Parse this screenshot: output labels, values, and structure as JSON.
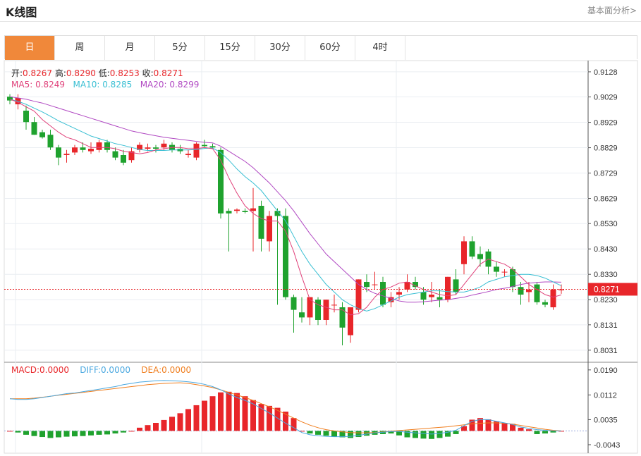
{
  "header": {
    "title": "K线图",
    "analysis_link": "基本面分析>"
  },
  "tabs": [
    {
      "label": "日",
      "active": true
    },
    {
      "label": "周",
      "active": false
    },
    {
      "label": "月",
      "active": false
    },
    {
      "label": "5分",
      "active": false
    },
    {
      "label": "15分",
      "active": false
    },
    {
      "label": "30分",
      "active": false
    },
    {
      "label": "60分",
      "active": false
    },
    {
      "label": "4时",
      "active": false
    }
  ],
  "ohlc_legend": {
    "open_label": "开:",
    "open": "0.8267",
    "high_label": "高:",
    "high": "0.8290",
    "low_label": "低:",
    "low": "0.8253",
    "close_label": "收:",
    "close": "0.8271"
  },
  "ma_legend": {
    "ma5_label": "MA5:",
    "ma5": "0.8249",
    "ma10_label": "MA10:",
    "ma10": "0.8285",
    "ma20_label": "MA20:",
    "ma20": "0.8299"
  },
  "macd_legend": {
    "macd_label": "MACD:",
    "macd": "0.0000",
    "diff_label": "DIFF:",
    "diff": "0.0000",
    "dea_label": "DEA:",
    "dea": "0.0000"
  },
  "colors": {
    "up": "#e8262a",
    "down": "#1fa22e",
    "ma5": "#e0417a",
    "ma10": "#39bfd3",
    "ma20": "#b048c2",
    "diff": "#4aa8e0",
    "dea": "#f07e1e",
    "accent": "#f0883a",
    "grid": "#eaeef2"
  },
  "chart_data": [
    {
      "type": "candlestick",
      "name": "price",
      "y_ticks": [
        "0.9128",
        "0.9029",
        "0.8929",
        "0.8829",
        "0.8729",
        "0.8629",
        "0.8530",
        "0.8430",
        "0.8330",
        "0.8230",
        "0.8131",
        "0.8031"
      ],
      "ylim": [
        0.8,
        0.915
      ],
      "current_price_label": "0.8271",
      "current_price": 0.8271,
      "candles": [
        [
          0.903,
          0.904,
          0.9,
          0.9015
        ],
        [
          0.9,
          0.904,
          0.898,
          0.9025
        ],
        [
          0.8975,
          0.8995,
          0.89,
          0.893
        ],
        [
          0.893,
          0.895,
          0.888,
          0.888
        ],
        [
          0.889,
          0.89,
          0.8865,
          0.887
        ],
        [
          0.888,
          0.89,
          0.882,
          0.883
        ],
        [
          0.883,
          0.884,
          0.876,
          0.879
        ],
        [
          0.88,
          0.882,
          0.877,
          0.8805
        ],
        [
          0.881,
          0.884,
          0.88,
          0.883
        ],
        [
          0.883,
          0.885,
          0.881,
          0.882
        ],
        [
          0.8815,
          0.885,
          0.8805,
          0.8825
        ],
        [
          0.882,
          0.886,
          0.881,
          0.885
        ],
        [
          0.885,
          0.886,
          0.881,
          0.882
        ],
        [
          0.8815,
          0.883,
          0.878,
          0.879
        ],
        [
          0.88,
          0.882,
          0.876,
          0.877
        ],
        [
          0.878,
          0.883,
          0.877,
          0.8815
        ],
        [
          0.882,
          0.885,
          0.881,
          0.884
        ],
        [
          0.8825,
          0.8845,
          0.8815,
          0.883
        ],
        [
          0.883,
          0.884,
          0.881,
          0.8825
        ],
        [
          0.883,
          0.886,
          0.882,
          0.8845
        ],
        [
          0.884,
          0.885,
          0.881,
          0.882
        ],
        [
          0.8825,
          0.884,
          0.8805,
          0.8815
        ],
        [
          0.88,
          0.882,
          0.879,
          0.8805
        ],
        [
          0.879,
          0.885,
          0.878,
          0.8845
        ],
        [
          0.884,
          0.886,
          0.883,
          0.8835
        ],
        [
          0.8835,
          0.8845,
          0.8825,
          0.883
        ],
        [
          0.882,
          0.883,
          0.855,
          0.857
        ],
        [
          0.858,
          0.859,
          0.842,
          0.857
        ],
        [
          0.858,
          0.859,
          0.857,
          0.8585
        ],
        [
          0.858,
          0.859,
          0.857,
          0.8575
        ],
        [
          0.858,
          0.867,
          0.842,
          0.859
        ],
        [
          0.86,
          0.862,
          0.842,
          0.847
        ],
        [
          0.846,
          0.858,
          0.842,
          0.856
        ],
        [
          0.858,
          0.859,
          0.821,
          0.856
        ],
        [
          0.856,
          0.859,
          0.823,
          0.824
        ],
        [
          0.824,
          0.825,
          0.81,
          0.819
        ],
        [
          0.818,
          0.824,
          0.814,
          0.816
        ],
        [
          0.816,
          0.824,
          0.813,
          0.824
        ],
        [
          0.823,
          0.824,
          0.813,
          0.815
        ],
        [
          0.815,
          0.823,
          0.813,
          0.823
        ],
        [
          0.821,
          0.825,
          0.818,
          0.821
        ],
        [
          0.82,
          0.822,
          0.805,
          0.812
        ],
        [
          0.809,
          0.82,
          0.806,
          0.82
        ],
        [
          0.819,
          0.831,
          0.818,
          0.831
        ],
        [
          0.83,
          0.833,
          0.826,
          0.828
        ],
        [
          0.829,
          0.834,
          0.827,
          0.829
        ],
        [
          0.83,
          0.832,
          0.82,
          0.821
        ],
        [
          0.822,
          0.826,
          0.82,
          0.824
        ],
        [
          0.825,
          0.828,
          0.823,
          0.826
        ],
        [
          0.827,
          0.833,
          0.826,
          0.83
        ],
        [
          0.83,
          0.832,
          0.827,
          0.828
        ],
        [
          0.826,
          0.828,
          0.821,
          0.823
        ],
        [
          0.824,
          0.83,
          0.822,
          0.825
        ],
        [
          0.824,
          0.827,
          0.82,
          0.823
        ],
        [
          0.823,
          0.832,
          0.822,
          0.832
        ],
        [
          0.831,
          0.835,
          0.825,
          0.826
        ],
        [
          0.837,
          0.848,
          0.833,
          0.846
        ],
        [
          0.846,
          0.848,
          0.839,
          0.84
        ],
        [
          0.841,
          0.844,
          0.836,
          0.839
        ],
        [
          0.842,
          0.843,
          0.833,
          0.836
        ],
        [
          0.836,
          0.838,
          0.832,
          0.834
        ],
        [
          0.834,
          0.835,
          0.832,
          0.834
        ],
        [
          0.835,
          0.836,
          0.826,
          0.828
        ],
        [
          0.828,
          0.83,
          0.821,
          0.825
        ],
        [
          0.826,
          0.83,
          0.822,
          0.827
        ],
        [
          0.829,
          0.83,
          0.821,
          0.822
        ],
        [
          0.822,
          0.823,
          0.82,
          0.821
        ],
        [
          0.82,
          0.829,
          0.819,
          0.827
        ],
        [
          0.8267,
          0.829,
          0.8253,
          0.8271
        ]
      ],
      "ma5": [
        0.902,
        0.9008,
        0.899,
        0.8973,
        0.894,
        0.8915,
        0.889,
        0.887,
        0.886,
        0.8845,
        0.883,
        0.883,
        0.883,
        0.8825,
        0.8815,
        0.881,
        0.8805,
        0.881,
        0.882,
        0.8825,
        0.883,
        0.883,
        0.8825,
        0.8825,
        0.883,
        0.8825,
        0.878,
        0.871,
        0.865,
        0.86,
        0.857,
        0.855,
        0.854,
        0.854,
        0.85,
        0.842,
        0.832,
        0.823,
        0.821,
        0.82,
        0.819,
        0.819,
        0.817,
        0.8175,
        0.82,
        0.824,
        0.827,
        0.828,
        0.8295,
        0.83,
        0.8285,
        0.827,
        0.826,
        0.825,
        0.8245,
        0.825,
        0.829,
        0.833,
        0.837,
        0.839,
        0.838,
        0.837,
        0.835,
        0.832,
        0.829,
        0.827,
        0.825,
        0.824,
        0.8249
      ],
      "ma10": [
        0.902,
        0.9012,
        0.9,
        0.8985,
        0.897,
        0.8953,
        0.8935,
        0.892,
        0.8905,
        0.889,
        0.8875,
        0.8865,
        0.8855,
        0.8845,
        0.8838,
        0.883,
        0.8822,
        0.8818,
        0.8818,
        0.8818,
        0.882,
        0.882,
        0.882,
        0.8822,
        0.8826,
        0.8828,
        0.881,
        0.878,
        0.8745,
        0.8715,
        0.869,
        0.866,
        0.862,
        0.858,
        0.854,
        0.848,
        0.842,
        0.837,
        0.833,
        0.829,
        0.826,
        0.823,
        0.821,
        0.8195,
        0.8185,
        0.8195,
        0.821,
        0.8225,
        0.824,
        0.825,
        0.8255,
        0.826,
        0.8265,
        0.8265,
        0.8262,
        0.826,
        0.826,
        0.8268,
        0.828,
        0.83,
        0.831,
        0.832,
        0.8325,
        0.833,
        0.833,
        0.8325,
        0.8315,
        0.83,
        0.8285
      ],
      "ma20": [
        0.903,
        0.9025,
        0.902,
        0.9012,
        0.9005,
        0.8995,
        0.8985,
        0.8975,
        0.8965,
        0.8955,
        0.8945,
        0.8935,
        0.8925,
        0.8915,
        0.8905,
        0.8895,
        0.8888,
        0.8882,
        0.8876,
        0.887,
        0.8866,
        0.8862,
        0.8858,
        0.8854,
        0.885,
        0.8848,
        0.8835,
        0.8815,
        0.8795,
        0.8775,
        0.875,
        0.872,
        0.869,
        0.8655,
        0.862,
        0.858,
        0.8535,
        0.849,
        0.845,
        0.841,
        0.838,
        0.835,
        0.832,
        0.829,
        0.827,
        0.8255,
        0.8245,
        0.8235,
        0.8225,
        0.822,
        0.822,
        0.8222,
        0.8225,
        0.8228,
        0.823,
        0.8235,
        0.824,
        0.8248,
        0.8255,
        0.8262,
        0.827,
        0.8275,
        0.8282,
        0.829,
        0.8295,
        0.8298,
        0.83,
        0.83,
        0.8299
      ]
    },
    {
      "type": "bar",
      "name": "macd",
      "y_ticks": [
        "0.0190",
        "0.0112",
        "0.0035",
        "-0.0043"
      ],
      "ylim": [
        -0.0065,
        0.0205
      ],
      "histogram": [
        0.0,
        -0.0005,
        -0.0012,
        -0.0016,
        -0.0019,
        -0.0022,
        -0.002,
        -0.0018,
        -0.0017,
        -0.0016,
        -0.0014,
        -0.0012,
        -0.0011,
        -0.0008,
        -0.0005,
        0.0,
        0.001,
        0.0018,
        0.0025,
        0.0034,
        0.0044,
        0.0055,
        0.0068,
        0.008,
        0.0094,
        0.0108,
        0.012,
        0.0122,
        0.0118,
        0.0108,
        0.0096,
        0.0084,
        0.0078,
        0.0072,
        0.006,
        0.004,
        0.0,
        -0.0008,
        -0.0012,
        -0.0015,
        -0.0018,
        -0.002,
        -0.0022,
        -0.0019,
        -0.0015,
        -0.0012,
        -0.001,
        -0.0008,
        -0.0014,
        -0.002,
        -0.0022,
        -0.0024,
        -0.0025,
        -0.0022,
        -0.0018,
        -0.001,
        0.0015,
        0.0035,
        0.004,
        0.0036,
        0.003,
        0.0025,
        0.0022,
        0.001,
        0.0005,
        -0.001,
        -0.0008,
        -0.0005,
        0.0
      ],
      "diff": [
        0.01,
        0.0098,
        0.0098,
        0.01,
        0.0104,
        0.0108,
        0.0112,
        0.0116,
        0.0118,
        0.0122,
        0.0126,
        0.013,
        0.0134,
        0.0138,
        0.0144,
        0.0148,
        0.0152,
        0.0154,
        0.0156,
        0.0157,
        0.0156,
        0.0155,
        0.0153,
        0.015,
        0.0145,
        0.0138,
        0.0128,
        0.0115,
        0.0104,
        0.0095,
        0.0084,
        0.007,
        0.0056,
        0.004,
        0.0024,
        0.001,
        -0.0005,
        -0.0012,
        -0.0015,
        -0.0017,
        -0.0018,
        -0.0018,
        -0.0017,
        -0.0014,
        -0.001,
        -0.0006,
        -0.0004,
        -0.0002,
        -0.0002,
        -0.0004,
        -0.0006,
        -0.0008,
        -0.001,
        -0.0008,
        -0.0004,
        0.0002,
        0.0016,
        0.003,
        0.0035,
        0.0035,
        0.003,
        0.0025,
        0.002,
        0.0012,
        0.0008,
        0.0004,
        0.0002,
        0.0,
        0.0
      ],
      "dea": [
        0.01,
        0.01,
        0.01,
        0.0102,
        0.0105,
        0.0108,
        0.0111,
        0.0114,
        0.0117,
        0.012,
        0.0123,
        0.0126,
        0.0129,
        0.0132,
        0.0135,
        0.0138,
        0.0141,
        0.0144,
        0.0146,
        0.0148,
        0.0149,
        0.015,
        0.0148,
        0.0144,
        0.014,
        0.0135,
        0.0128,
        0.012,
        0.0112,
        0.0104,
        0.0095,
        0.0085,
        0.0075,
        0.0064,
        0.0052,
        0.004,
        0.0028,
        0.0018,
        0.001,
        0.0004,
        0.0,
        -0.0003,
        -0.0005,
        -0.0006,
        -0.0006,
        -0.0005,
        -0.0003,
        -0.0001,
        0.0001,
        0.0003,
        0.0005,
        0.0007,
        0.0009,
        0.0011,
        0.0013,
        0.0016,
        0.0019,
        0.0022,
        0.0024,
        0.0025,
        0.0025,
        0.0024,
        0.0021,
        0.0017,
        0.0013,
        0.0009,
        0.0005,
        0.0002,
        0.0
      ]
    }
  ]
}
